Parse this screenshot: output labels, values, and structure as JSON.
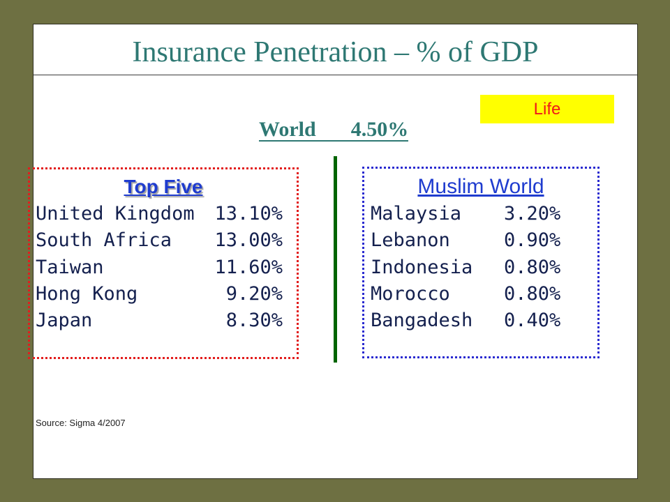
{
  "slide": {
    "title": "Insurance Penetration – % of GDP",
    "badge": "Life",
    "world": {
      "label": "World",
      "value": "4.50%"
    },
    "source": "Source: Sigma 4/2007"
  },
  "top_five": {
    "heading": "Top Five",
    "rows": [
      {
        "country": "United Kingdom",
        "value": "13.10%"
      },
      {
        "country": "South Africa",
        "value": "13.00%"
      },
      {
        "country": "Taiwan",
        "value": "11.60%"
      },
      {
        "country": "Hong Kong",
        "value": "9.20%"
      },
      {
        "country": "Japan",
        "value": "8.30%"
      }
    ]
  },
  "muslim_world": {
    "heading": "Muslim World",
    "rows": [
      {
        "country": "Malaysia",
        "value": "3.20%"
      },
      {
        "country": "Lebanon",
        "value": "0.90%"
      },
      {
        "country": "Indonesia",
        "value": "0.80%"
      },
      {
        "country": "Morocco",
        "value": "0.80%"
      },
      {
        "country": "Bangadesh",
        "value": "0.40%"
      }
    ]
  },
  "colors": {
    "frame": "#6e7042",
    "title": "#2e7873",
    "badge_bg": "#ffff00",
    "badge_text": "#f01818",
    "top_five_border": "#e21d1d",
    "muslim_world_border": "#2a2ad0",
    "heading_blue": "#1f3ccf",
    "divider": "#006400",
    "row_text": "#14204e"
  }
}
